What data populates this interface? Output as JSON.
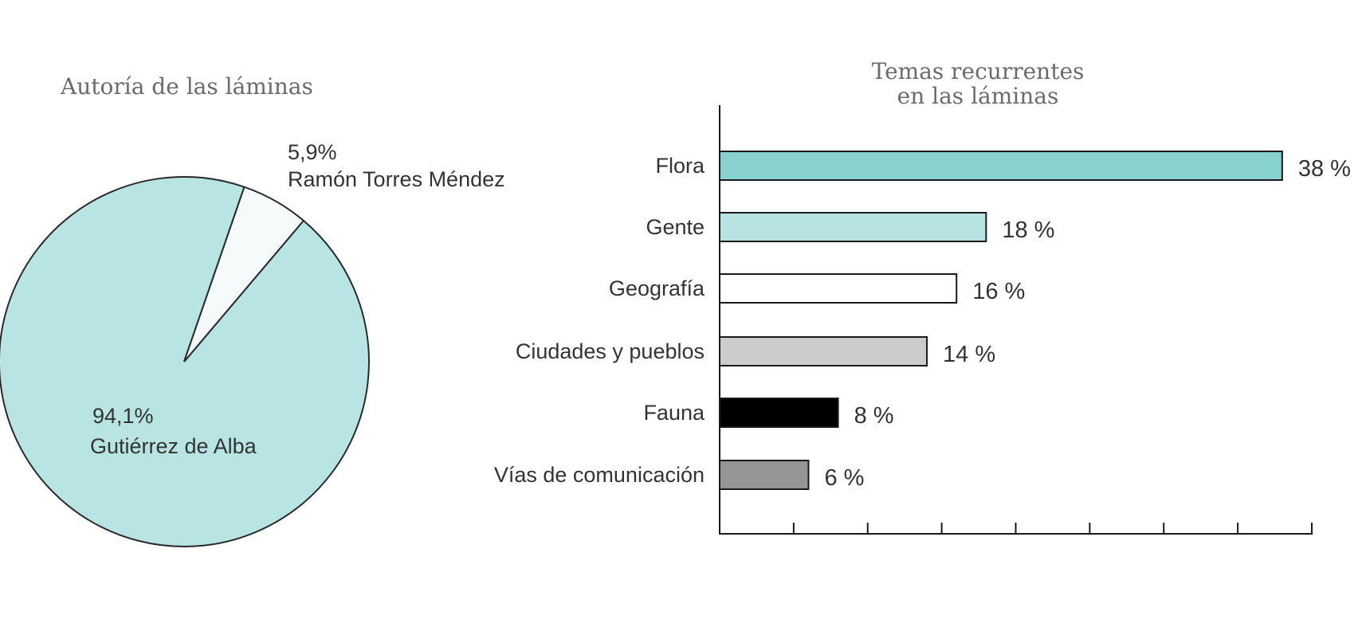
{
  "pie_chart": {
    "title": "Autoría de las láminas",
    "slices": [
      {
        "name": "Gutiérrez de Alba",
        "value_label": "94,1%",
        "value": 94.1,
        "color": "#b8e4e3"
      },
      {
        "name": "Ramón Torres Méndez",
        "value_label": "5,9%",
        "value": 5.9,
        "color": "#f5fafb"
      }
    ]
  },
  "bar_chart": {
    "title_line1": "Temas recurrentes",
    "title_line2": "en las láminas",
    "bars": [
      {
        "category": "Flora",
        "value": 38,
        "value_label": "38 %",
        "color": "#87d1cf"
      },
      {
        "category": "Gente",
        "value": 18,
        "value_label": "18 %",
        "color": "#b7e3e2"
      },
      {
        "category": "Geografía",
        "value": 16,
        "value_label": "16 %",
        "color": "#ffffff"
      },
      {
        "category": "Ciudades y pueblos",
        "value": 14,
        "value_label": "14 %",
        "color": "#cccccc"
      },
      {
        "category": "Fauna",
        "value": 8,
        "value_label": "8 %",
        "color": "#000000"
      },
      {
        "category": "Vías de comunicación",
        "value": 6,
        "value_label": "6 %",
        "color": "#959595"
      }
    ],
    "axis_max": 40,
    "tick_step": 5
  },
  "chart_data": [
    {
      "type": "pie",
      "title": "Autoría de las láminas",
      "categories": [
        "Gutiérrez de Alba",
        "Ramón Torres Méndez"
      ],
      "values": [
        94.1,
        5.9
      ],
      "unit": "%"
    },
    {
      "type": "bar",
      "orientation": "horizontal",
      "title": "Temas recurrentes en las láminas",
      "categories": [
        "Flora",
        "Gente",
        "Geografía",
        "Ciudades y pueblos",
        "Fauna",
        "Vías de comunicación"
      ],
      "values": [
        38,
        18,
        16,
        14,
        8,
        6
      ],
      "xlabel": "",
      "ylabel": "",
      "xlim": [
        0,
        40
      ],
      "x_ticks": [
        0,
        5,
        10,
        15,
        20,
        25,
        30,
        35,
        40
      ],
      "x_tick_labels_shown": false,
      "grid": false,
      "unit": "%"
    }
  ]
}
